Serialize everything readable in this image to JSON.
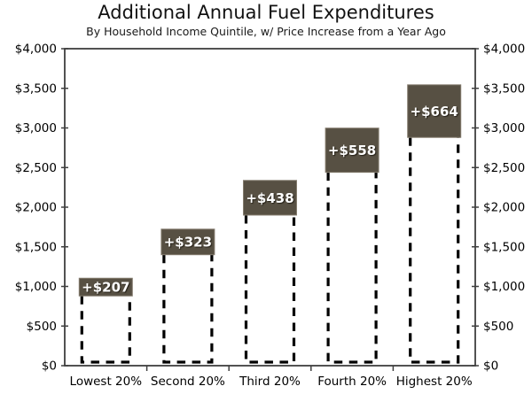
{
  "header": {
    "title": "Additional Annual Fuel Expenditures",
    "subtitle": "By Household Income Quintile, w/ Price Increase from a Year Ago"
  },
  "chart_data": {
    "type": "bar",
    "title": "Additional Annual Fuel Expenditures",
    "subtitle": "By Household Income Quintile, w/ Price Increase from a Year Ago",
    "categories": [
      "Lowest 20%",
      "Second 20%",
      "Third 20%",
      "Fourth 20%",
      "Highest 20%"
    ],
    "series": [
      {
        "name": "baseline expenditure a year ago (dashed outline)",
        "style": "dashed-outline",
        "values": [
          880,
          1400,
          1900,
          2440,
          2880
        ]
      },
      {
        "name": "additional expenditure with price increase (solid cap)",
        "style": "solid-cap",
        "values": [
          207,
          323,
          438,
          558,
          664
        ],
        "labels": [
          "+$207",
          "+$323",
          "+$438",
          "+$558",
          "+$664"
        ]
      }
    ],
    "totals": [
      1087,
      1723,
      2338,
      2998,
      3544
    ],
    "ylim": [
      0,
      4000
    ],
    "y_tick_step": 500,
    "y_tick_labels": [
      "$0",
      "$500",
      "$1,000",
      "$1,500",
      "$2,000",
      "$2,500",
      "$3,000",
      "$3,500",
      "$4,000"
    ],
    "axes": "mirrored left and right y axes, ticks only, no gridlines",
    "grid": false,
    "legend": "none",
    "colors": {
      "cap_fill": "#575043",
      "cap_border": "#847c6e",
      "cap_label": "#ffffff",
      "dashed_outline": "#000000",
      "axis": "#3f3f3f",
      "text": "#000000",
      "background": "#ffffff"
    }
  }
}
